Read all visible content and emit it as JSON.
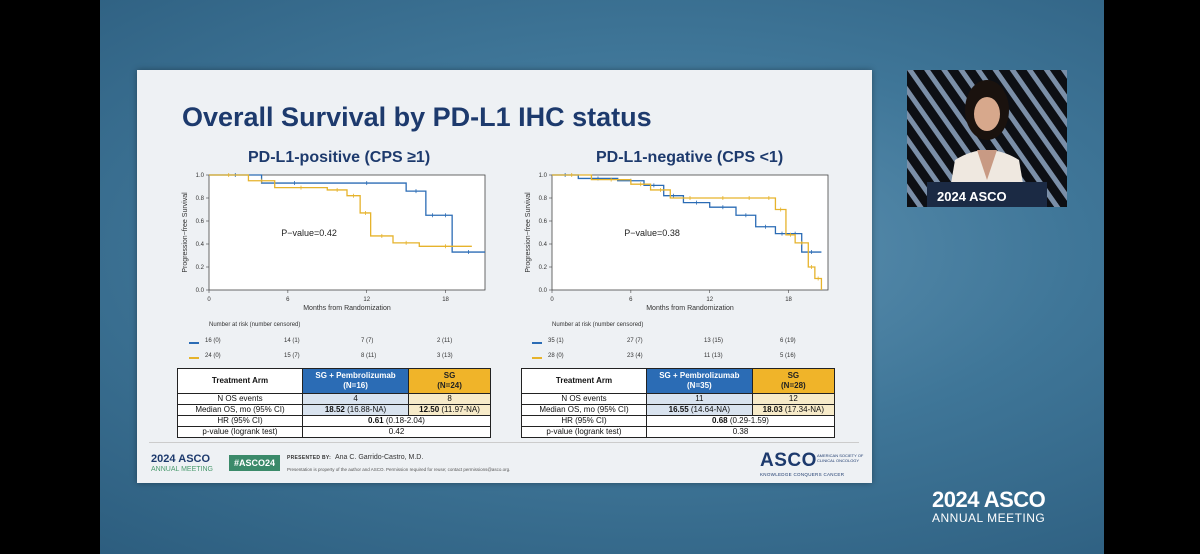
{
  "slide": {
    "title": "Overall Survival by PD-L1 IHC status",
    "footer": {
      "logo_year": "2024",
      "logo_brand": "ASCO",
      "logo_sub": "ANNUAL MEETING",
      "hashtag": "#ASCO24",
      "presented_by_label": "PRESENTED BY:",
      "presenter": "Ana C. Garrido-Castro, M.D.",
      "disclaimer": "Presentation is property of the author and ASCO. Permission required for reuse; contact permissions@asco.org.",
      "asco_word": "ASCO",
      "asco_society": "AMERICAN SOCIETY OF CLINICAL ONCOLOGY",
      "asco_tagline": "KNOWLEDGE CONQUERS CANCER"
    }
  },
  "panels": [
    {
      "title": "PD-L1-positive (CPS ≥1)",
      "pvalue": "P−value=0.42",
      "ylabel": "Progression−free Survival",
      "xlabel": "Months from Randomization",
      "risk_header": "Number at risk (number censored)",
      "risk_rows": [
        {
          "color": "#2b6cb5",
          "values": [
            "16 (0)",
            "14 (1)",
            "7 (7)",
            "2 (11)"
          ]
        },
        {
          "color": "#e6b32c",
          "values": [
            "24 (0)",
            "15 (7)",
            "8 (11)",
            "3 (13)"
          ]
        }
      ],
      "table": {
        "arm_label": "Treatment Arm",
        "arm1_name": "SG + Pembrolizumab",
        "arm1_n": "(N=16)",
        "arm2_name": "SG",
        "arm2_n": "(N=24)",
        "events_label": "N OS events",
        "events1": "4",
        "events2": "8",
        "median_label": "Median OS, mo (95% CI)",
        "median1": "18.52",
        "median1_ci": " (16.88-NA)",
        "median2": "12.50",
        "median2_ci": " (11.97-NA)",
        "hr_label": "HR (95% CI)",
        "hr": "0.61",
        "hr_ci": " (0.18-2.04)",
        "p_label": "p-value (logrank test)",
        "p": "0.42"
      }
    },
    {
      "title": "PD-L1-negative (CPS <1)",
      "pvalue": "P−value=0.38",
      "ylabel": "Progression−free Survival",
      "xlabel": "Months from Randomization",
      "risk_header": "Number at risk (number censored)",
      "risk_rows": [
        {
          "color": "#2b6cb5",
          "values": [
            "35 (1)",
            "27 (7)",
            "13 (15)",
            "6 (19)"
          ]
        },
        {
          "color": "#e6b32c",
          "values": [
            "28 (0)",
            "23 (4)",
            "11 (13)",
            "5 (16)"
          ]
        }
      ],
      "table": {
        "arm_label": "Treatment Arm",
        "arm1_name": "SG + Pembrolizumab",
        "arm1_n": "(N=35)",
        "arm2_name": "SG",
        "arm2_n": "(N=28)",
        "events_label": "N OS events",
        "events1": "11",
        "events2": "12",
        "median_label": "Median OS, mo (95% CI)",
        "median1": "16.55",
        "median1_ci": " (14.64-NA)",
        "median2": "18.03",
        "median2_ci": " (17.34-NA)",
        "hr_label": "HR (95% CI)",
        "hr": "0.68",
        "hr_ci": " (0.29-1.59)",
        "p_label": "p-value (logrank test)",
        "p": "0.38"
      }
    }
  ],
  "chart_data": [
    {
      "type": "line",
      "xlabel": "Months from Randomization",
      "ylabel": "Progression−free Survival",
      "xlim": [
        0,
        21
      ],
      "ylim": [
        0,
        1
      ],
      "xticks": [
        0,
        6,
        12,
        18
      ],
      "yticks": [
        0.0,
        0.2,
        0.4,
        0.6,
        0.8,
        1.0
      ],
      "series": [
        {
          "name": "SG + Pembrolizumab",
          "color": "#2b6cb5",
          "x": [
            0,
            4,
            9,
            15,
            16.5,
            17.5,
            18.5,
            21
          ],
          "y": [
            1.0,
            0.93,
            0.93,
            0.86,
            0.65,
            0.65,
            0.33,
            0.33
          ]
        },
        {
          "name": "SG",
          "color": "#e6b32c",
          "x": [
            0,
            3,
            5,
            9,
            10.5,
            11.5,
            12.3,
            14,
            16,
            20
          ],
          "y": [
            1.0,
            0.95,
            0.89,
            0.87,
            0.82,
            0.67,
            0.47,
            0.41,
            0.38,
            0.38
          ]
        }
      ]
    },
    {
      "type": "line",
      "xlabel": "Months from Randomization",
      "ylabel": "Progression−free Survival",
      "xlim": [
        0,
        21
      ],
      "ylim": [
        0,
        1
      ],
      "xticks": [
        0,
        6,
        12,
        18
      ],
      "yticks": [
        0.0,
        0.2,
        0.4,
        0.6,
        0.8,
        1.0
      ],
      "series": [
        {
          "name": "SG + Pembrolizumab",
          "color": "#2b6cb5",
          "x": [
            0,
            2,
            5,
            7,
            8.5,
            10,
            12,
            14,
            15.5,
            17,
            18,
            19,
            20.5
          ],
          "y": [
            1.0,
            0.97,
            0.95,
            0.91,
            0.82,
            0.76,
            0.72,
            0.65,
            0.55,
            0.49,
            0.49,
            0.33,
            0.33
          ]
        },
        {
          "name": "SG",
          "color": "#e6b32c",
          "x": [
            0,
            3,
            6,
            7.5,
            9,
            12,
            14,
            16,
            17,
            17.8,
            18.5,
            19.5,
            20,
            20.5
          ],
          "y": [
            1.0,
            0.96,
            0.92,
            0.87,
            0.8,
            0.8,
            0.8,
            0.8,
            0.7,
            0.48,
            0.41,
            0.2,
            0.1,
            0.0
          ]
        }
      ]
    }
  ],
  "speaker_view": {
    "brand_year": "2024",
    "brand_name": "ASCO"
  },
  "brand": {
    "year_asco": "2024 ASCO",
    "sub": "ANNUAL MEETING"
  }
}
